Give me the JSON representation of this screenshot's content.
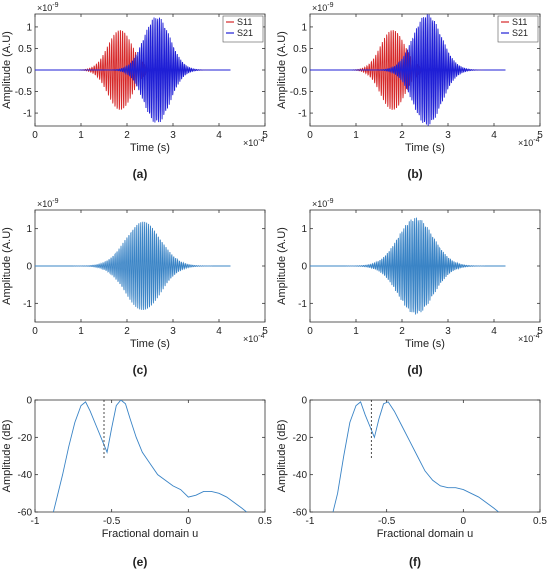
{
  "figure": {
    "panels": [
      {
        "id": "a",
        "caption": "(a)",
        "ylabel": "Amplitude (A.U)",
        "xlabel": "Time (s)",
        "xexp": "×10",
        "xexp_pow": "-4",
        "yexp": "×10",
        "yexp_pow": "-9",
        "xticks": [
          "0",
          "1",
          "2",
          "3",
          "4",
          "5"
        ],
        "yticks": [
          "-1",
          "-0.5",
          "0",
          "0.5",
          "1"
        ],
        "legend": [
          "S11",
          "S21"
        ]
      },
      {
        "id": "b",
        "caption": "(b)",
        "ylabel": "Amplitude (A.U)",
        "xlabel": "Time (s)",
        "xexp": "×10",
        "xexp_pow": "-4",
        "yexp": "×10",
        "yexp_pow": "-9",
        "xticks": [
          "0",
          "1",
          "2",
          "3",
          "4",
          "5"
        ],
        "yticks": [
          "-1",
          "-0.5",
          "0",
          "0.5",
          "1"
        ],
        "legend": [
          "S11",
          "S21"
        ]
      },
      {
        "id": "c",
        "caption": "(c)",
        "ylabel": "Amplitude (A.U)",
        "xlabel": "Time (s)",
        "xexp": "×10",
        "xexp_pow": "-4",
        "yexp": "×10",
        "yexp_pow": "-9",
        "xticks": [
          "0",
          "1",
          "2",
          "3",
          "4",
          "5"
        ],
        "yticks": [
          "-1",
          "0",
          "1"
        ]
      },
      {
        "id": "d",
        "caption": "(d)",
        "ylabel": "Amplitude (A.U)",
        "xlabel": "Time (s)",
        "xexp": "×10",
        "xexp_pow": "-4",
        "yexp": "×10",
        "yexp_pow": "-9",
        "xticks": [
          "0",
          "1",
          "2",
          "3",
          "4",
          "5"
        ],
        "yticks": [
          "-1",
          "0",
          "1"
        ]
      },
      {
        "id": "e",
        "caption": "(e)",
        "ylabel": "Amplitude (dB)",
        "xlabel": "Fractional domain u",
        "xticks": [
          "-1",
          "-0.5",
          "0",
          "0.5"
        ],
        "yticks": [
          "-60",
          "-40",
          "-20",
          "0"
        ]
      },
      {
        "id": "f",
        "caption": "(f)",
        "ylabel": "Amplitude (dB)",
        "xlabel": "Fractional domain u",
        "xticks": [
          "-1",
          "-0.5",
          "0",
          "0.5"
        ],
        "yticks": [
          "-60",
          "-40",
          "-20",
          "0"
        ]
      }
    ]
  },
  "chart_data": [
    {
      "type": "line",
      "panel": "a",
      "xlim": [
        0,
        5
      ],
      "ylim": [
        -1.3,
        1.3
      ],
      "x_scale": "1e-4",
      "y_scale": "1e-9",
      "legend_position": "top-right",
      "series": [
        {
          "name": "S11",
          "color": "#d62728",
          "style": "chirp-burst",
          "center": 1.85,
          "width": 0.55,
          "amplitude": 0.95,
          "frequency": 20
        },
        {
          "name": "S21",
          "color": "#1f1fd6",
          "style": "chirp-burst",
          "center": 2.65,
          "width": 0.6,
          "amplitude": 1.25,
          "frequency": 24
        }
      ]
    },
    {
      "type": "line",
      "panel": "b",
      "xlim": [
        0,
        5
      ],
      "ylim": [
        -1.3,
        1.3
      ],
      "x_scale": "1e-4",
      "y_scale": "1e-9",
      "legend_position": "top-right",
      "series": [
        {
          "name": "S11",
          "color": "#d62728",
          "style": "chirp-burst",
          "center": 1.8,
          "width": 0.55,
          "amplitude": 0.95,
          "frequency": 20
        },
        {
          "name": "S21",
          "color": "#1f1fd6",
          "style": "chirp-burst",
          "center": 2.55,
          "width": 0.65,
          "amplitude": 1.3,
          "frequency": 24
        }
      ]
    },
    {
      "type": "line",
      "panel": "c",
      "xlim": [
        0,
        5
      ],
      "ylim": [
        -1.5,
        1.5
      ],
      "x_scale": "1e-4",
      "y_scale": "1e-9",
      "series": [
        {
          "color": "#3a84c6",
          "style": "chirp-burst",
          "center": 2.35,
          "width": 0.8,
          "amplitude": 1.2,
          "frequency": 22
        }
      ]
    },
    {
      "type": "line",
      "panel": "d",
      "xlim": [
        0,
        5
      ],
      "ylim": [
        -1.5,
        1.5
      ],
      "x_scale": "1e-4",
      "y_scale": "1e-9",
      "series": [
        {
          "color": "#3a84c6",
          "style": "chirp-burst",
          "center": 2.3,
          "width": 0.8,
          "amplitude": 1.3,
          "frequency": 24
        }
      ]
    },
    {
      "type": "line",
      "panel": "e",
      "xlim": [
        -1,
        0.5
      ],
      "ylim": [
        -60,
        0
      ],
      "marker_line_x": -0.55,
      "series": [
        {
          "color": "#3a84c6",
          "x": [
            -0.88,
            -0.82,
            -0.78,
            -0.74,
            -0.7,
            -0.67,
            -0.64,
            -0.6,
            -0.56,
            -0.53,
            -0.5,
            -0.47,
            -0.44,
            -0.41,
            -0.38,
            -0.34,
            -0.3,
            -0.25,
            -0.2,
            -0.15,
            -0.1,
            -0.05,
            0.0,
            0.05,
            0.1,
            0.15,
            0.2,
            0.25,
            0.3,
            0.35,
            0.38
          ],
          "y": [
            -60,
            -40,
            -25,
            -12,
            -3,
            -1,
            -6,
            -14,
            -22,
            -28,
            -15,
            -3,
            0,
            -2,
            -10,
            -20,
            -28,
            -34,
            -40,
            -43,
            -46,
            -48,
            -52,
            -51,
            -49,
            -49,
            -50,
            -52,
            -55,
            -58,
            -60
          ]
        }
      ]
    },
    {
      "type": "line",
      "panel": "f",
      "xlim": [
        -1,
        0.5
      ],
      "ylim": [
        -60,
        0
      ],
      "marker_line_x": -0.6,
      "series": [
        {
          "color": "#3a84c6",
          "x": [
            -0.85,
            -0.82,
            -0.78,
            -0.74,
            -0.7,
            -0.67,
            -0.64,
            -0.61,
            -0.58,
            -0.55,
            -0.52,
            -0.49,
            -0.45,
            -0.4,
            -0.35,
            -0.3,
            -0.25,
            -0.2,
            -0.15,
            -0.1,
            -0.05,
            0.0,
            0.05,
            0.1,
            0.15,
            0.2,
            0.23
          ],
          "y": [
            -60,
            -50,
            -30,
            -12,
            -3,
            -1,
            -8,
            -14,
            -20,
            -10,
            -2,
            -1,
            -6,
            -14,
            -22,
            -30,
            -38,
            -43,
            -46,
            -47,
            -47,
            -48,
            -50,
            -52,
            -55,
            -58,
            -60
          ]
        }
      ]
    }
  ]
}
